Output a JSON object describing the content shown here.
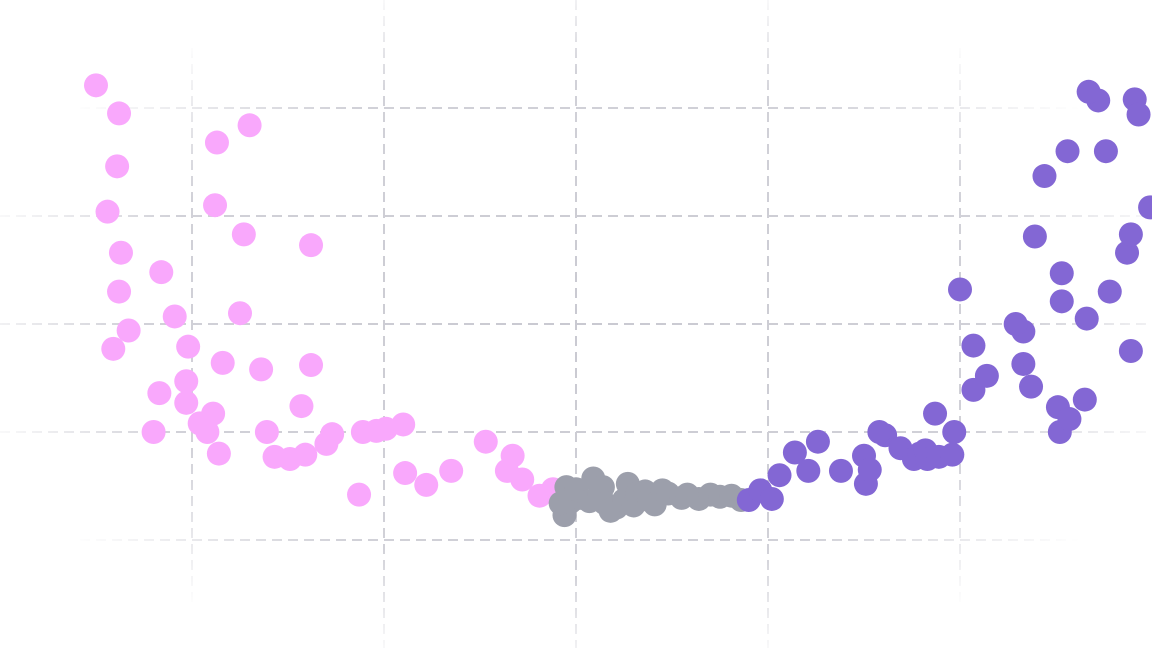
{
  "chart_data": {
    "type": "scatter",
    "title": "",
    "xlabel": "",
    "ylabel": "",
    "xlim": [
      -3,
      3
    ],
    "ylim": [
      -2,
      4
    ],
    "grid": true,
    "grid_x": [
      -2,
      -1,
      0,
      1,
      2
    ],
    "grid_y": [
      -1,
      0,
      1,
      2,
      3
    ],
    "legend": "none",
    "series": [
      {
        "color": "#f9a8fc",
        "points": [
          [
            -2.5,
            3.21
          ],
          [
            -2.38,
            2.95
          ],
          [
            -2.39,
            2.46
          ],
          [
            -2.44,
            2.04
          ],
          [
            -2.37,
            1.66
          ],
          [
            -2.38,
            1.3
          ],
          [
            -2.33,
            0.94
          ],
          [
            -2.41,
            0.77
          ],
          [
            -2.16,
            1.48
          ],
          [
            -2.17,
            0.36
          ],
          [
            -2.2,
            0.0
          ],
          [
            -2.09,
            1.07
          ],
          [
            -2.02,
            0.79
          ],
          [
            -2.03,
            0.47
          ],
          [
            -2.03,
            0.27
          ],
          [
            -1.96,
            0.08
          ],
          [
            -1.89,
            0.17
          ],
          [
            -1.92,
            0.0
          ],
          [
            -1.86,
            -0.2
          ],
          [
            -1.87,
            2.68
          ],
          [
            -1.88,
            2.1
          ],
          [
            -1.84,
            0.64
          ],
          [
            -1.73,
            1.83
          ],
          [
            -1.75,
            1.1
          ],
          [
            -1.7,
            2.84
          ],
          [
            -1.64,
            0.58
          ],
          [
            -1.61,
            0.0
          ],
          [
            -1.57,
            -0.23
          ],
          [
            -1.49,
            -0.25
          ],
          [
            -1.41,
            -0.21
          ],
          [
            -1.43,
            0.24
          ],
          [
            -1.38,
            1.73
          ],
          [
            -1.38,
            0.62
          ],
          [
            -1.3,
            -0.11
          ],
          [
            -1.27,
            -0.02
          ],
          [
            -1.13,
            -0.58
          ],
          [
            -1.11,
            0.0
          ],
          [
            -1.04,
            0.01
          ],
          [
            -0.99,
            0.03
          ],
          [
            -0.9,
            0.07
          ],
          [
            -0.89,
            -0.38
          ],
          [
            -0.78,
            -0.49
          ],
          [
            -0.65,
            -0.36
          ],
          [
            -0.47,
            -0.09
          ],
          [
            -0.36,
            -0.36
          ],
          [
            -0.33,
            -0.22
          ],
          [
            -0.28,
            -0.44
          ],
          [
            -0.19,
            -0.59
          ],
          [
            -0.12,
            -0.53
          ]
        ]
      },
      {
        "color": "#9c9fab",
        "points": [
          [
            -0.06,
            -0.77
          ],
          [
            -0.08,
            -0.66
          ],
          [
            -0.05,
            -0.51
          ],
          [
            -0.03,
            -0.65
          ],
          [
            0.02,
            -0.61
          ],
          [
            0.0,
            -0.53
          ],
          [
            0.07,
            -0.64
          ],
          [
            0.09,
            -0.43
          ],
          [
            0.12,
            -0.58
          ],
          [
            0.14,
            -0.51
          ],
          [
            0.15,
            -0.66
          ],
          [
            0.18,
            -0.73
          ],
          [
            0.18,
            -0.72
          ],
          [
            0.21,
            -0.7
          ],
          [
            0.25,
            -0.63
          ],
          [
            0.27,
            -0.48
          ],
          [
            0.3,
            -0.68
          ],
          [
            0.32,
            -0.57
          ],
          [
            0.36,
            -0.55
          ],
          [
            0.38,
            -0.63
          ],
          [
            0.41,
            -0.67
          ],
          [
            0.45,
            -0.54
          ],
          [
            0.48,
            -0.57
          ],
          [
            0.55,
            -0.61
          ],
          [
            0.58,
            -0.58
          ],
          [
            0.64,
            -0.62
          ],
          [
            0.7,
            -0.58
          ],
          [
            0.75,
            -0.6
          ],
          [
            0.81,
            -0.59
          ],
          [
            0.86,
            -0.63
          ]
        ]
      },
      {
        "color": "#8367d4",
        "points": [
          [
            0.9,
            -0.63
          ],
          [
            0.96,
            -0.54
          ],
          [
            1.02,
            -0.62
          ],
          [
            1.06,
            -0.4
          ],
          [
            1.14,
            -0.19
          ],
          [
            1.21,
            -0.36
          ],
          [
            1.26,
            -0.09
          ],
          [
            1.38,
            -0.36
          ],
          [
            1.5,
            -0.22
          ],
          [
            1.51,
            -0.48
          ],
          [
            1.53,
            -0.35
          ],
          [
            1.61,
            -0.03
          ],
          [
            1.58,
            0.0
          ],
          [
            1.69,
            -0.15
          ],
          [
            1.76,
            -0.25
          ],
          [
            1.79,
            -0.2
          ],
          [
            1.82,
            -0.17
          ],
          [
            1.83,
            -0.25
          ],
          [
            1.89,
            -0.23
          ],
          [
            1.87,
            0.17
          ],
          [
            1.96,
            -0.21
          ],
          [
            1.97,
            0.0
          ],
          [
            2.07,
            0.39
          ],
          [
            2.07,
            0.8
          ],
          [
            2.0,
            1.32
          ],
          [
            2.14,
            0.52
          ],
          [
            2.33,
            0.93
          ],
          [
            2.33,
            0.63
          ],
          [
            2.37,
            0.42
          ],
          [
            2.29,
            1.0
          ],
          [
            2.39,
            1.81
          ],
          [
            2.44,
            2.37
          ],
          [
            2.56,
            2.6
          ],
          [
            2.53,
            1.47
          ],
          [
            2.53,
            1.21
          ],
          [
            2.52,
            0.0
          ],
          [
            2.51,
            0.23
          ],
          [
            2.57,
            0.12
          ],
          [
            2.65,
            0.3
          ],
          [
            2.66,
            1.05
          ],
          [
            2.72,
            3.07
          ],
          [
            2.78,
            1.3
          ],
          [
            2.87,
            1.66
          ],
          [
            2.89,
            0.75
          ],
          [
            2.89,
            1.83
          ],
          [
            2.91,
            3.08
          ],
          [
            2.99,
            2.08
          ],
          [
            2.93,
            2.94
          ],
          [
            2.67,
            3.15
          ],
          [
            2.76,
            2.6
          ]
        ]
      }
    ]
  }
}
